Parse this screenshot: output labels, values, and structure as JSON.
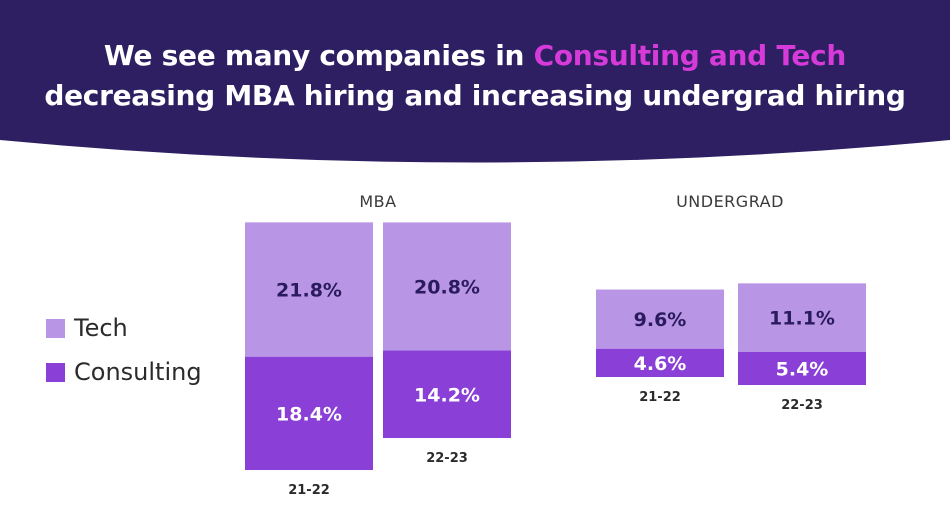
{
  "title": {
    "part1": "We see many companies in ",
    "highlight": "Consulting and Tech",
    "line2": "decreasing MBA hiring and increasing undergrad hiring"
  },
  "colors": {
    "header_bg": "#2e1f63",
    "tech": "#b995e6",
    "consulting": "#8a3fd6",
    "highlight": "#d63bd9",
    "value_on_tech": "#2a1a5e",
    "value_on_consulting": "#ffffff"
  },
  "legend": [
    {
      "name": "Tech",
      "color": "#b995e6"
    },
    {
      "name": "Consulting",
      "color": "#8a3fd6"
    }
  ],
  "chart_data": [
    {
      "type": "bar",
      "stacked": true,
      "title": "MBA",
      "categories": [
        "21-22",
        "22-23"
      ],
      "series": [
        {
          "name": "Consulting",
          "values": [
            18.4,
            14.2
          ],
          "labels": [
            "18.4%",
            "14.2%"
          ]
        },
        {
          "name": "Tech",
          "values": [
            21.8,
            20.8
          ],
          "labels": [
            "21.8%",
            "20.8%"
          ]
        }
      ]
    },
    {
      "type": "bar",
      "stacked": true,
      "title": "UNDERGRAD",
      "categories": [
        "21-22",
        "22-23"
      ],
      "series": [
        {
          "name": "Consulting",
          "values": [
            4.6,
            5.4
          ],
          "labels": [
            "4.6%",
            "5.4%"
          ]
        },
        {
          "name": "Tech",
          "values": [
            9.6,
            11.1
          ],
          "labels": [
            "9.6%",
            "11.1%"
          ]
        }
      ]
    }
  ]
}
